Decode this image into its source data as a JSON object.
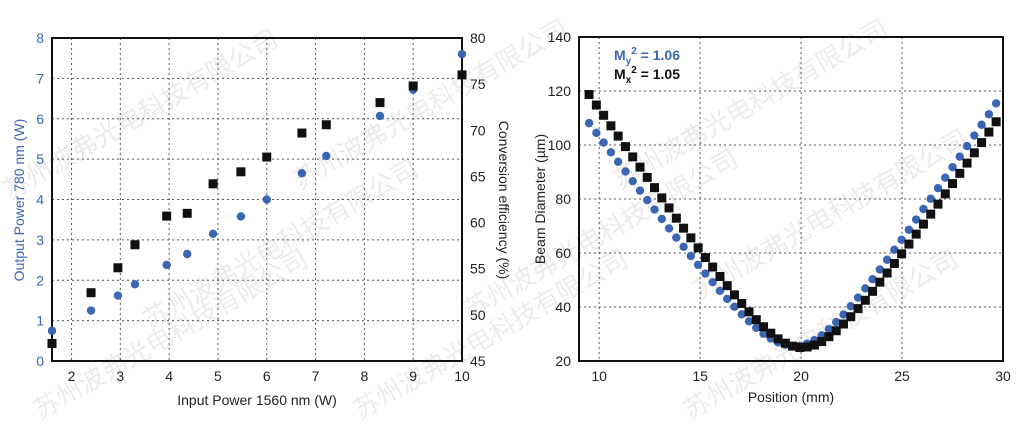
{
  "watermark": "苏州波弗光电科技有限公司",
  "colors": {
    "blue": "#3a66b4",
    "black": "#111111"
  },
  "chart_data": [
    {
      "type": "scatter",
      "xlabel": "Input Power 1560 nm (W)",
      "ylabel": "Output Power 780 nm (W)",
      "y2label": "Conversion efficiency (%)",
      "xlim": [
        1.6,
        10
      ],
      "ylim": [
        0,
        8
      ],
      "y2lim": [
        45,
        80
      ],
      "xticks": [
        2,
        3,
        4,
        5,
        6,
        7,
        8,
        9,
        10
      ],
      "yticks": [
        0,
        1,
        2,
        3,
        4,
        5,
        6,
        7,
        8
      ],
      "y2ticks": [
        45,
        50,
        55,
        60,
        65,
        70,
        75,
        80
      ],
      "grid": true,
      "x": [
        1.6,
        2.4,
        2.95,
        3.3,
        3.95,
        4.37,
        4.9,
        5.47,
        6.0,
        6.72,
        7.22,
        8.32,
        9.0,
        10.0
      ],
      "series": [
        {
          "axis": "left",
          "marker": "circle",
          "color": "#3a66b4",
          "values": [
            0.75,
            1.25,
            1.62,
            1.9,
            2.38,
            2.65,
            3.15,
            3.58,
            4.0,
            4.65,
            5.08,
            6.07,
            6.72,
            7.6
          ]
        },
        {
          "axis": "right",
          "marker": "square",
          "color": "#111111",
          "values": [
            46.9,
            52.4,
            55.1,
            57.6,
            60.7,
            61.0,
            64.2,
            65.5,
            67.1,
            69.7,
            70.6,
            73.0,
            74.8,
            76.0
          ]
        }
      ]
    },
    {
      "type": "scatter",
      "xlabel": "Position (mm)",
      "ylabel": "Beam Diameter (µm)",
      "xlim": [
        9,
        30
      ],
      "ylim": [
        20,
        140
      ],
      "xticks": [
        10,
        15,
        20,
        25,
        30
      ],
      "yticks": [
        20,
        40,
        60,
        80,
        100,
        120,
        140
      ],
      "grid": true,
      "legend": [
        {
          "text": "M",
          "sub": "y",
          "sup": "2",
          "rest": " = 1.06",
          "color": "#3a66b4"
        },
        {
          "text": "M",
          "sub": "x",
          "sup": "2",
          "rest": " = 1.05",
          "color": "#111111"
        }
      ],
      "legend_position": "top-left",
      "x": [
        9.5,
        9.86,
        10.22,
        10.58,
        10.94,
        11.3,
        11.66,
        12.02,
        12.38,
        12.74,
        13.1,
        13.46,
        13.82,
        14.18,
        14.54,
        14.9,
        15.26,
        15.62,
        15.98,
        16.34,
        16.7,
        17.06,
        17.42,
        17.78,
        18.14,
        18.5,
        18.86,
        19.22,
        19.58,
        19.94,
        20.3,
        20.66,
        21.02,
        21.38,
        21.74,
        22.1,
        22.46,
        22.82,
        23.18,
        23.54,
        23.9,
        24.26,
        24.62,
        24.98,
        25.34,
        25.7,
        26.06,
        26.42,
        26.78,
        27.14,
        27.5,
        27.86,
        28.22,
        28.58,
        28.94,
        29.3,
        29.66
      ],
      "series": [
        {
          "name": "My² = 1.06",
          "marker": "circle",
          "color": "#3a66b4",
          "values": [
            108.1,
            104.5,
            100.9,
            97.3,
            93.8,
            90.2,
            86.6,
            83.1,
            79.6,
            76.1,
            72.6,
            69.1,
            65.7,
            62.3,
            58.9,
            55.6,
            52.4,
            49.2,
            46.0,
            43.0,
            40.1,
            37.3,
            34.7,
            32.3,
            30.1,
            28.3,
            26.9,
            26.0,
            25.5,
            25.6,
            26.4,
            27.7,
            29.5,
            31.8,
            34.4,
            37.2,
            40.3,
            43.5,
            46.9,
            50.3,
            53.9,
            57.5,
            61.2,
            64.9,
            68.6,
            72.4,
            76.3,
            80.1,
            84.0,
            87.9,
            91.8,
            95.7,
            99.6,
            103.5,
            107.5,
            111.4,
            115.4
          ]
        },
        {
          "name": "Mx² = 1.05",
          "marker": "square",
          "color": "#111111",
          "values": [
            118.7,
            114.8,
            111.0,
            107.1,
            103.3,
            99.4,
            95.6,
            91.8,
            88.0,
            84.2,
            80.4,
            76.7,
            72.9,
            69.2,
            65.6,
            61.9,
            58.3,
            54.8,
            51.3,
            47.9,
            44.5,
            41.3,
            38.2,
            35.3,
            32.7,
            30.3,
            28.2,
            26.6,
            25.5,
            25.0,
            25.2,
            25.9,
            27.2,
            29.0,
            31.2,
            33.7,
            36.4,
            39.4,
            42.5,
            45.8,
            49.2,
            52.6,
            56.1,
            59.7,
            63.3,
            67.0,
            70.7,
            74.4,
            78.1,
            81.9,
            85.7,
            89.5,
            93.3,
            97.1,
            100.9,
            104.8,
            108.6
          ]
        }
      ]
    }
  ]
}
